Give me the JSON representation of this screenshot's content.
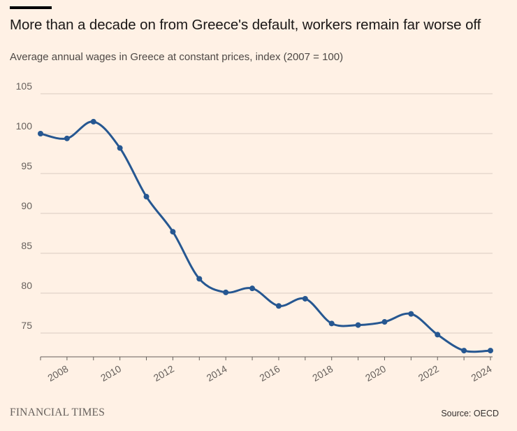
{
  "header": {
    "title": "More than a decade on from Greece's default, workers remain far worse off",
    "subtitle": "Average annual wages in Greece at constant prices, index (2007 = 100)"
  },
  "footer": {
    "brand": "FINANCIAL TIMES",
    "source": "Source: OECD"
  },
  "colors": {
    "background": "#fff1e5",
    "line": "#265791",
    "grid": "#d9ccc1",
    "axis": "#66605c"
  },
  "chart_data": {
    "type": "line",
    "title": "More than a decade on from Greece's default, workers remain far worse off",
    "subtitle": "Average annual wages in Greece at constant prices, index (2007 = 100)",
    "xlabel": "",
    "ylabel": "",
    "x": [
      2007,
      2008,
      2009,
      2010,
      2011,
      2012,
      2013,
      2014,
      2015,
      2016,
      2017,
      2018,
      2019,
      2020,
      2021,
      2022,
      2023,
      2024
    ],
    "series": [
      {
        "values": [
          100.0,
          99.4,
          101.5,
          98.2,
          92.1,
          87.7,
          81.8,
          80.1,
          80.6,
          78.4,
          79.3,
          76.2,
          76.0,
          76.4,
          77.4,
          74.8,
          72.8,
          72.8
        ]
      }
    ],
    "xlim": [
      2007,
      2024
    ],
    "ylim": [
      72,
      105
    ],
    "xticks": [
      "2008",
      "2010",
      "2012",
      "2014",
      "2016",
      "2018",
      "2020",
      "2022",
      "2024"
    ],
    "yticks": [
      "75",
      "80",
      "85",
      "90",
      "95",
      "100",
      "105"
    ],
    "grid": true,
    "legend": "none"
  }
}
